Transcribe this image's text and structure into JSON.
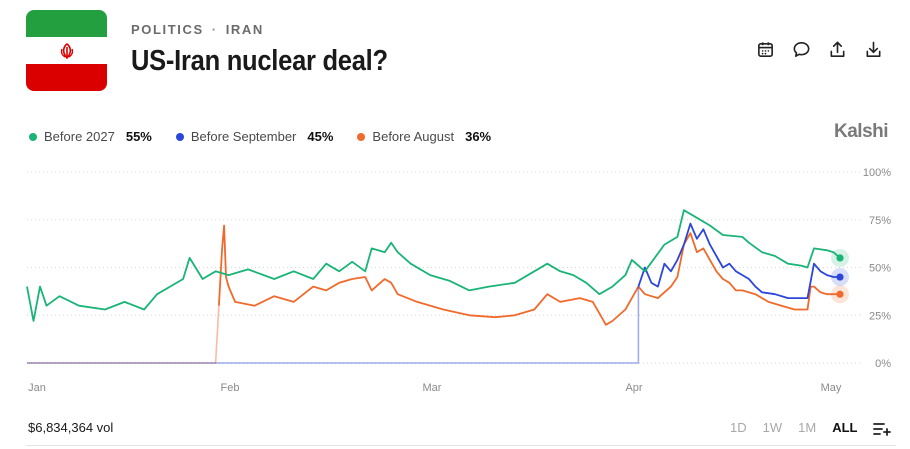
{
  "header": {
    "category": "POLITICS",
    "separator": "·",
    "subcategory": "IRAN",
    "title": "US-Iran nuclear deal?"
  },
  "flag_icon": "iran-flag-icon",
  "actions": [
    {
      "name": "calendar-icon"
    },
    {
      "name": "comment-icon"
    },
    {
      "name": "share-icon"
    },
    {
      "name": "download-icon"
    }
  ],
  "brand": "Kalshi",
  "legend": [
    {
      "label": "Before 2027",
      "value": "55%",
      "color": "#19b476"
    },
    {
      "label": "Before September",
      "value": "45%",
      "color": "#2b46d8"
    },
    {
      "label": "Before August",
      "value": "36%",
      "color": "#f06a2c"
    }
  ],
  "chart_data": {
    "type": "line",
    "x_axis": {
      "ticks": [
        "Jan",
        "Feb",
        "Mar",
        "Apr",
        "May"
      ]
    },
    "y_axis": {
      "ticks": [
        "100%",
        "75%",
        "50%",
        "25%",
        "0%"
      ],
      "range": [
        0,
        100
      ]
    },
    "grid": "dotted horizontal",
    "x_range_days": [
      0,
      122
    ],
    "series": [
      {
        "name": "Before 2027",
        "color": "#19b476",
        "points": [
          [
            0,
            40
          ],
          [
            1,
            22
          ],
          [
            2,
            40
          ],
          [
            3,
            30
          ],
          [
            5,
            35
          ],
          [
            8,
            30
          ],
          [
            12,
            28
          ],
          [
            15,
            32
          ],
          [
            18,
            28
          ],
          [
            20,
            36
          ],
          [
            22,
            40
          ],
          [
            24,
            44
          ],
          [
            25,
            55
          ],
          [
            27,
            44
          ],
          [
            29,
            48
          ],
          [
            31,
            46
          ],
          [
            34,
            49
          ],
          [
            38,
            44
          ],
          [
            41,
            48
          ],
          [
            44,
            44
          ],
          [
            46,
            52
          ],
          [
            48,
            48
          ],
          [
            50,
            53
          ],
          [
            52,
            48
          ],
          [
            53,
            60
          ],
          [
            55,
            58
          ],
          [
            56,
            63
          ],
          [
            57,
            58
          ],
          [
            59,
            52
          ],
          [
            62,
            46
          ],
          [
            65,
            43
          ],
          [
            68,
            38
          ],
          [
            71,
            40
          ],
          [
            75,
            42
          ],
          [
            78,
            48
          ],
          [
            80,
            52
          ],
          [
            82,
            48
          ],
          [
            84,
            46
          ],
          [
            86,
            42
          ],
          [
            88,
            36
          ],
          [
            90,
            40
          ],
          [
            92,
            46
          ],
          [
            93,
            54
          ],
          [
            95,
            48
          ],
          [
            98,
            62
          ],
          [
            100,
            66
          ],
          [
            101,
            80
          ],
          [
            103,
            76
          ],
          [
            105,
            72
          ],
          [
            107,
            67
          ],
          [
            110,
            66
          ],
          [
            111,
            63
          ],
          [
            113,
            58
          ],
          [
            115,
            56
          ],
          [
            117,
            52
          ],
          [
            119,
            51
          ],
          [
            120,
            50
          ],
          [
            121,
            60
          ],
          [
            123,
            59
          ],
          [
            124,
            58
          ],
          [
            125,
            55
          ]
        ]
      },
      {
        "name": "Before September",
        "color": "#2b46d8",
        "points": [
          [
            0,
            0
          ],
          [
            93,
            0
          ],
          [
            94,
            0
          ],
          [
            94,
            40
          ],
          [
            95,
            50
          ],
          [
            96,
            42
          ],
          [
            97,
            40
          ],
          [
            98,
            52
          ],
          [
            99,
            48
          ],
          [
            100,
            54
          ],
          [
            101,
            62
          ],
          [
            102,
            73
          ],
          [
            103,
            65
          ],
          [
            104,
            70
          ],
          [
            105,
            62
          ],
          [
            106,
            56
          ],
          [
            107,
            50
          ],
          [
            108,
            52
          ],
          [
            109,
            48
          ],
          [
            110,
            46
          ],
          [
            111,
            44
          ],
          [
            112,
            40
          ],
          [
            113,
            37
          ],
          [
            115,
            36
          ],
          [
            117,
            34
          ],
          [
            119,
            34
          ],
          [
            120,
            34
          ],
          [
            121,
            52
          ],
          [
            122,
            48
          ],
          [
            123,
            46
          ],
          [
            124,
            45
          ],
          [
            125,
            45
          ]
        ]
      },
      {
        "name": "Before August",
        "color": "#f06a2c",
        "points": [
          [
            0,
            0
          ],
          [
            29,
            0
          ],
          [
            29.5,
            30
          ],
          [
            30,
            60
          ],
          [
            30.3,
            72
          ],
          [
            30.6,
            45
          ],
          [
            31,
            40
          ],
          [
            32,
            32
          ],
          [
            35,
            30
          ],
          [
            38,
            35
          ],
          [
            41,
            32
          ],
          [
            44,
            40
          ],
          [
            46,
            38
          ],
          [
            48,
            42
          ],
          [
            50,
            44
          ],
          [
            52,
            45
          ],
          [
            53,
            38
          ],
          [
            55,
            44
          ],
          [
            56,
            42
          ],
          [
            57,
            36
          ],
          [
            60,
            32
          ],
          [
            64,
            28
          ],
          [
            68,
            25
          ],
          [
            72,
            24
          ],
          [
            75,
            25
          ],
          [
            78,
            28
          ],
          [
            80,
            36
          ],
          [
            82,
            32
          ],
          [
            85,
            34
          ],
          [
            87,
            32
          ],
          [
            88,
            26
          ],
          [
            89,
            20
          ],
          [
            90,
            22
          ],
          [
            92,
            28
          ],
          [
            93,
            34
          ],
          [
            94,
            40
          ],
          [
            95,
            36
          ],
          [
            97,
            34
          ],
          [
            99,
            40
          ],
          [
            100,
            45
          ],
          [
            101,
            62
          ],
          [
            102,
            68
          ],
          [
            103,
            58
          ],
          [
            104,
            60
          ],
          [
            105,
            54
          ],
          [
            106,
            48
          ],
          [
            107,
            44
          ],
          [
            108,
            42
          ],
          [
            109,
            38
          ],
          [
            110,
            38
          ],
          [
            112,
            36
          ],
          [
            114,
            32
          ],
          [
            116,
            30
          ],
          [
            118,
            28
          ],
          [
            120,
            28
          ],
          [
            120.5,
            40
          ],
          [
            121,
            40
          ],
          [
            122,
            37
          ],
          [
            123,
            36
          ],
          [
            124,
            36
          ],
          [
            125,
            36
          ]
        ]
      }
    ]
  },
  "footer": {
    "volume": "$6,834,364 vol",
    "ranges": [
      "1D",
      "1W",
      "1M",
      "ALL"
    ],
    "active_range": "ALL",
    "list_icon": "add-list-icon"
  }
}
